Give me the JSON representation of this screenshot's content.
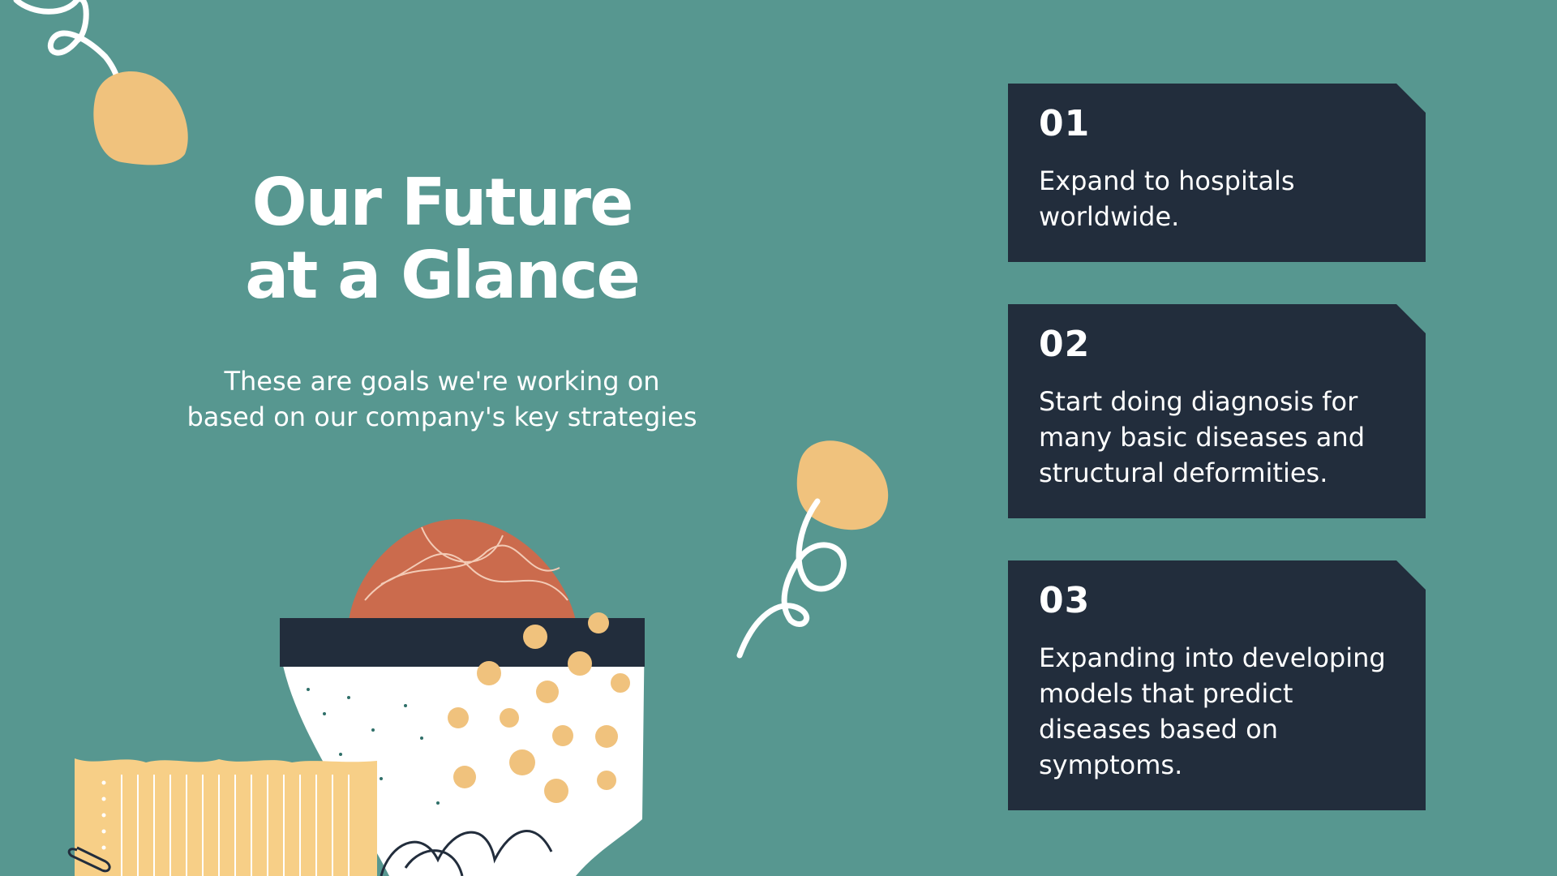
{
  "colors": {
    "background": "#579790",
    "card": "#222d3c",
    "text": "#ffffff",
    "accent_peach": "#f0c27d",
    "accent_terracotta": "#cb6b4d",
    "accent_yellow": "#f7cf87"
  },
  "slide": {
    "title_line1": "Our Future",
    "title_line2": "at a Glance",
    "subtitle_line1": "These are goals we're working on",
    "subtitle_line2": "based on our company's key strategies"
  },
  "goals": [
    {
      "number": "01",
      "text": "Expand to hospitals worldwide."
    },
    {
      "number": "02",
      "text": "Start doing diagnosis for many basic diseases and structural deformities."
    },
    {
      "number": "03",
      "text": "Expanding into developing models that predict diseases based on symptoms."
    }
  ],
  "decorations": {
    "icons": [
      "squiggle-icon",
      "blob-icon",
      "bowl-illustration-icon",
      "notepad-icon",
      "paperclip-icon"
    ]
  }
}
